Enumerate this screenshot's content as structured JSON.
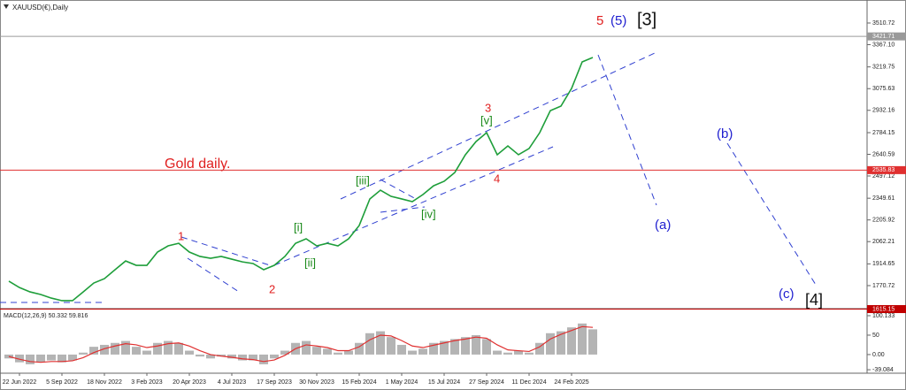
{
  "chart_data": [
    {
      "type": "line",
      "title": "XAUUSD(€),Daily",
      "categories": [
        null,
        "22 Jun 2022",
        null,
        null,
        null,
        "5 Sep 2022",
        null,
        null,
        null,
        "18 Nov 2022",
        null,
        null,
        null,
        "3 Feb 2023",
        null,
        null,
        null,
        "20 Apr 2023",
        null,
        null,
        null,
        "4 Jul 2023",
        null,
        null,
        null,
        "17 Sep 2023",
        null,
        null,
        null,
        "30 Nov 2023",
        null,
        null,
        null,
        "15 Feb 2024",
        null,
        null,
        null,
        "1 May 2024",
        null,
        null,
        null,
        "15 Jul 2024",
        null,
        null,
        null,
        "27 Sep 2024",
        null,
        null,
        null,
        "11 Dec 2024",
        null,
        null,
        null,
        "24 Feb 2025",
        null,
        null
      ],
      "values": [
        1800,
        1758,
        1729,
        1712,
        1688,
        1671,
        1671,
        1729,
        1788,
        1817,
        1876,
        1934,
        1905,
        1905,
        1993,
        2034,
        2051,
        1993,
        1964,
        1952,
        1964,
        1946,
        1928,
        1917,
        1876,
        1905,
        1964,
        2051,
        2081,
        2034,
        2051,
        2034,
        2081,
        2169,
        2345,
        2403,
        2362,
        2345,
        2327,
        2374,
        2432,
        2462,
        2520,
        2638,
        2725,
        2784,
        2638,
        2696,
        2638,
        2679,
        2784,
        2930,
        2960,
        3077,
        3253,
        3282
      ],
      "color": "#1e9e3a",
      "ylim": [
        1624,
        3663
      ],
      "yticks": [
        1770.72,
        1914.65,
        2062.21,
        2205.92,
        2349.61,
        2497.12,
        2640.59,
        2784.15,
        2932.16,
        3075.63,
        3219.75,
        {
          "value": 3367.1,
          "label": "3367.10"
        },
        3510.72
      ],
      "levels": [
        {
          "value": 3421.71,
          "color": "#9a9a9a"
        },
        {
          "value": 2535.83,
          "color": "#e03030"
        },
        {
          "value": 1615.15,
          "color": "#c00000"
        }
      ],
      "annotations": [
        "1",
        "2",
        "[i]",
        "[ii]",
        "[iii]",
        "[iv]",
        "3",
        "[v]",
        "4",
        "5",
        "(5)",
        "[3]",
        "(a)",
        "(b)",
        "(c)",
        "[4]",
        "Gold daily."
      ]
    },
    {
      "type": "bar",
      "title": "MACD(12,26,9) 50.332 59.816",
      "ylim": [
        -48,
        116
      ],
      "yticks": [
        -39.084,
        {
          "value": 0,
          "label": "0.00"
        },
        50,
        100.133
      ],
      "histogram": {
        "color": "#b4b4b4",
        "values": [
          -10,
          -20,
          -25,
          -20,
          -15,
          -20,
          -15,
          5,
          20,
          25,
          30,
          35,
          20,
          10,
          30,
          35,
          30,
          10,
          -5,
          -10,
          -5,
          -10,
          -15,
          -15,
          -25,
          -10,
          10,
          30,
          35,
          20,
          15,
          5,
          10,
          30,
          55,
          60,
          45,
          25,
          10,
          15,
          30,
          35,
          40,
          45,
          50,
          40,
          10,
          5,
          10,
          5,
          30,
          55,
          60,
          70,
          80,
          65
        ]
      },
      "series": [
        {
          "color": "#e03030",
          "values": [
            -5,
            -12,
            -18,
            -20,
            -18,
            -18,
            -16,
            -8,
            5,
            15,
            22,
            28,
            25,
            18,
            22,
            28,
            30,
            22,
            10,
            0,
            -4,
            -7,
            -11,
            -13,
            -18,
            -14,
            -2,
            15,
            25,
            22,
            18,
            10,
            10,
            20,
            38,
            50,
            48,
            36,
            22,
            18,
            24,
            30,
            36,
            40,
            45,
            42,
            25,
            12,
            10,
            8,
            20,
            40,
            52,
            62,
            72,
            70
          ]
        }
      ]
    }
  ]
}
